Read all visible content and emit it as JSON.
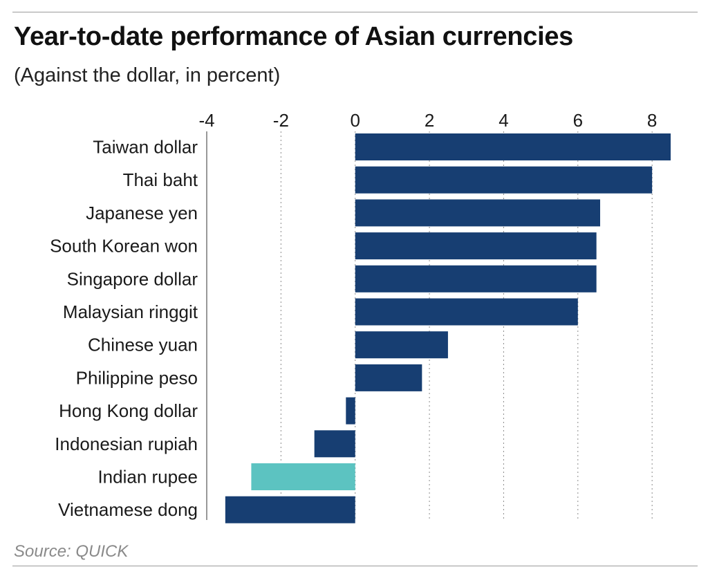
{
  "chart_data": {
    "type": "bar",
    "orientation": "horizontal",
    "title": "Year-to-date performance of Asian currencies",
    "subtitle": "(Against the dollar, in percent)",
    "source": "Source: QUICK",
    "xlim": [
      -4,
      8.5
    ],
    "xticks": [
      -4,
      -2,
      0,
      2,
      4,
      6,
      8
    ],
    "grid": true,
    "categories": [
      "Taiwan dollar",
      "Thai baht",
      "Japanese yen",
      "South Korean won",
      "Singapore dollar",
      "Malaysian ringgit",
      "Chinese yuan",
      "Philippine peso",
      "Hong Kong dollar",
      "Indonesian rupiah",
      "Indian rupee",
      "Vietnamese dong"
    ],
    "values": [
      8.5,
      8.0,
      6.6,
      6.5,
      6.5,
      6.0,
      2.5,
      1.8,
      -0.25,
      -1.1,
      -2.8,
      -3.5
    ],
    "highlight": "Indian rupee",
    "colors": {
      "bar": "#173e72",
      "highlight": "#5cc3c1",
      "grid": "#8a8a8a"
    }
  }
}
